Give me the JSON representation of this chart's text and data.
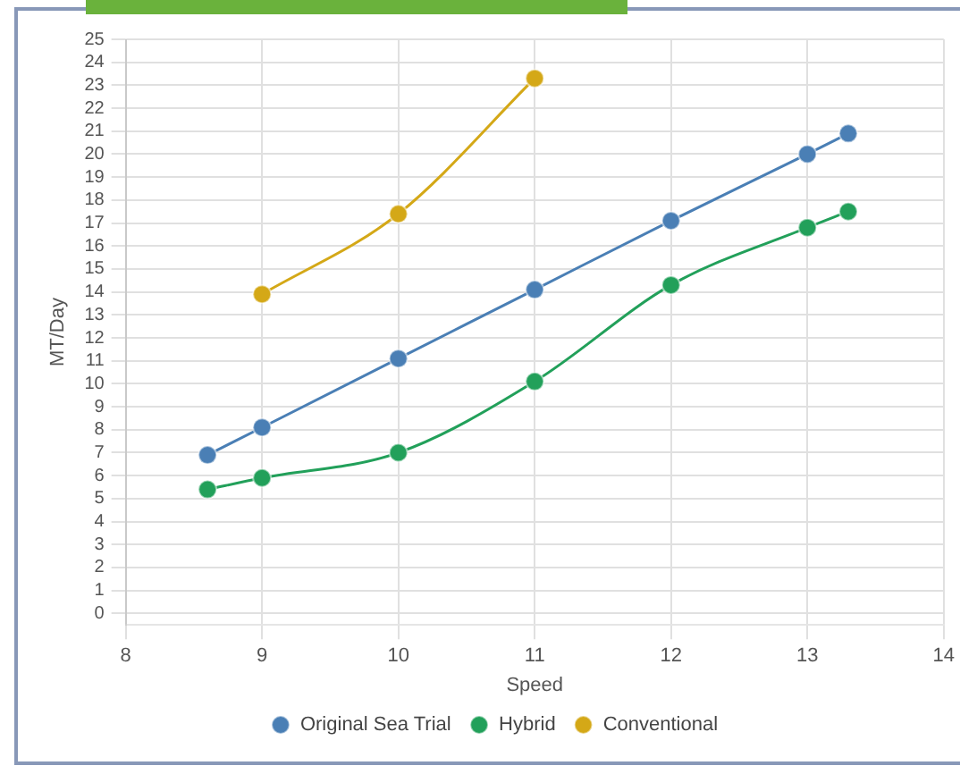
{
  "chart_data": {
    "type": "line",
    "xlabel": "Speed",
    "ylabel": "MT/Day",
    "xlim": [
      8,
      14
    ],
    "xticks": [
      8,
      9,
      10,
      11,
      12,
      13,
      14
    ],
    "ylim": [
      -0.5,
      25
    ],
    "yticks": [
      0,
      1,
      2,
      3,
      4,
      5,
      6,
      7,
      8,
      9,
      10,
      11,
      12,
      13,
      14,
      15,
      16,
      17,
      18,
      19,
      20,
      21,
      22,
      23,
      24,
      25
    ],
    "grid": true,
    "legend": "bottom",
    "marker": "circle",
    "series": [
      {
        "name": "Original Sea Trial",
        "color": "#4a7fb5",
        "x": [
          8.6,
          9,
          10,
          11,
          12,
          13,
          13.3
        ],
        "values": [
          6.9,
          8.1,
          11.1,
          14.1,
          17.1,
          20,
          20.9
        ]
      },
      {
        "name": "Hybrid",
        "color": "#22a05a",
        "x": [
          8.6,
          9,
          10,
          11,
          12,
          13,
          13.3
        ],
        "values": [
          5.4,
          5.9,
          7,
          10.1,
          14.3,
          16.8,
          17.5
        ]
      },
      {
        "name": "Conventional",
        "color": "#d4a817",
        "x": [
          9,
          10,
          11
        ],
        "values": [
          13.9,
          17.4,
          23.3
        ]
      }
    ]
  }
}
